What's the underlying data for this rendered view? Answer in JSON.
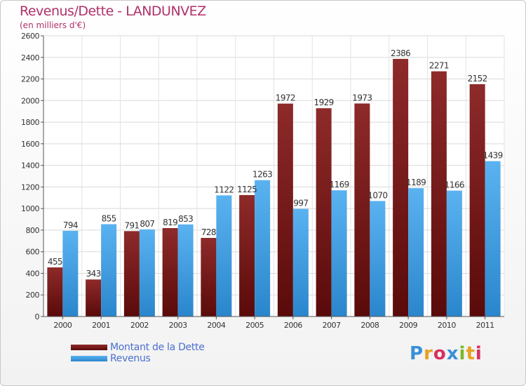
{
  "colors": {
    "debt": "#7a1a1a",
    "revenue": "#3a9ee4",
    "title": "#b0306a",
    "legend_text": "#4a6fd0"
  },
  "logo": {
    "text": "Proxiti",
    "letter_colors": [
      "#3a8fd8",
      "#e8a020",
      "#d83060",
      "#3a8fd8",
      "#7ab828",
      "#e8a020",
      "#d83060"
    ]
  },
  "chart_data": {
    "type": "bar",
    "title": "Revenus/Dette - LANDUNVEZ",
    "subtitle": "(en milliers d'€)",
    "categories": [
      "2000",
      "2001",
      "2002",
      "2003",
      "2004",
      "2005",
      "2006",
      "2007",
      "2008",
      "2009",
      "2010",
      "2011"
    ],
    "series": [
      {
        "name": "Montant de la Dette",
        "values": [
          455,
          343,
          791,
          819,
          728,
          1125,
          1972,
          1929,
          1973,
          2386,
          2271,
          2152
        ]
      },
      {
        "name": "Revenus",
        "values": [
          794,
          855,
          807,
          853,
          1122,
          1263,
          997,
          1169,
          1070,
          1189,
          1166,
          1439
        ]
      }
    ],
    "ylim": [
      0,
      2600
    ],
    "yticks": [
      0,
      200,
      400,
      600,
      800,
      1000,
      1200,
      1400,
      1600,
      1800,
      2000,
      2200,
      2400,
      2600
    ],
    "grid": true,
    "legend_position": "bottom-left"
  }
}
